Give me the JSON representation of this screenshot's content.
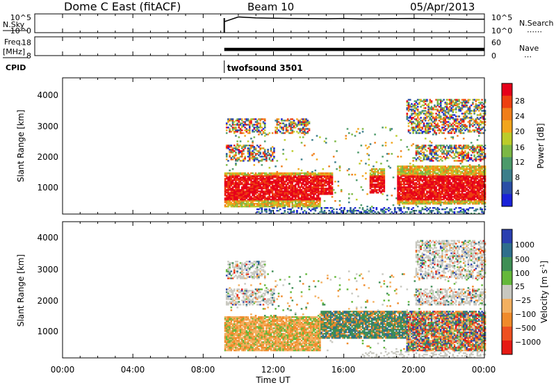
{
  "header": {
    "station": "Dome C East (fitACF)",
    "beam": "Beam 10",
    "date": "05/Apr/2013"
  },
  "strips": {
    "nsky": {
      "left_label": "N.Sky",
      "left_ticks": [
        "10^5",
        "10^0"
      ],
      "right_ticks": [
        "10^5",
        "10^0"
      ],
      "right_label": "N.Search"
    },
    "freq": {
      "left_label": "Freq.",
      "left_unit": "[MHz]",
      "left_ticks": [
        "18",
        "8"
      ],
      "right_ticks": [
        "60",
        "0"
      ],
      "right_label": "Nave"
    },
    "cpid": {
      "label": "CPID",
      "program": "twofsound 3501"
    }
  },
  "panels": {
    "power": {
      "ylabel": "Slant Range [km]",
      "yticks": [
        "4000",
        "3000",
        "2000",
        "1000"
      ],
      "colorbar_title": "Power [dB]",
      "colorbar_labels": [
        "28",
        "24",
        "20",
        "16",
        "12",
        "8",
        "4"
      ]
    },
    "velocity": {
      "ylabel": "Slant Range [km]",
      "yticks": [
        "4000",
        "3000",
        "2000",
        "1000"
      ],
      "colorbar_title": "Velocity [m s",
      "colorbar_unit_sup": "-1",
      "colorbar_unit_close": "]",
      "colorbar_labels": [
        "1000",
        "500",
        "100",
        "25",
        "−25",
        "−100",
        "−500",
        "−1000"
      ]
    }
  },
  "x_axis": {
    "ticks": [
      "00:00",
      "04:00",
      "08:00",
      "12:00",
      "16:00",
      "20:00",
      "00:00"
    ],
    "label": "Time UT"
  },
  "colors": {
    "power_scale": [
      "#e6001a",
      "#ee4010",
      "#f07e1a",
      "#f2a51c",
      "#bccc2a",
      "#7cb845",
      "#4c9a6a",
      "#3c7e8a",
      "#2a4ea6",
      "#1a22d8"
    ],
    "velocity_scale": [
      "#2a3fb0",
      "#2e6e8c",
      "#3e8f55",
      "#64b83a",
      "#c8c8c0",
      "#f3b060",
      "#f08a2a",
      "#ee5020",
      "#e61a14"
    ]
  },
  "chart_data": [
    {
      "type": "line",
      "name": "N.Sky / N.Search",
      "x_range_hours": [
        0,
        24
      ],
      "x": [
        9.2,
        10,
        11,
        12,
        13,
        14,
        15,
        16,
        17,
        18,
        19,
        20,
        21,
        22,
        23,
        24
      ],
      "series": [
        {
          "values": [
            1000,
            30000,
            15000,
            12000,
            10000,
            9000,
            8000,
            10000,
            7000,
            8000,
            9000,
            10000,
            8000,
            7000,
            6000,
            6000
          ]
        }
      ],
      "scale": "log",
      "ylim": [
        1,
        100000
      ]
    },
    {
      "type": "line",
      "name": "Freq / Nave",
      "x_range_hours": [
        0,
        24
      ],
      "series": [
        {
          "values_band_mhz": [
            10,
            12
          ]
        }
      ],
      "data_start_hour": 9.2,
      "ylim": [
        8,
        18
      ]
    },
    {
      "type": "heatmap",
      "title": "Power [dB]",
      "x_range_hours": [
        0,
        24
      ],
      "y_range_km": [
        180,
        4600
      ],
      "clim": [
        0,
        30
      ],
      "data_start_hour": 9.2,
      "features": [
        {
          "t": [
            9.2,
            14.5
          ],
          "range_km": [
            400,
            1500
          ],
          "level": "high"
        },
        {
          "t": [
            17.5,
            18.2
          ],
          "range_km": [
            900,
            1600
          ],
          "level": "high"
        },
        {
          "t": [
            19.0,
            24.0
          ],
          "range_km": [
            500,
            1700
          ],
          "level": "high"
        },
        {
          "t": [
            9.2,
            24.0
          ],
          "range_km": [
            2700,
            3500
          ],
          "level": "medium"
        },
        {
          "t": [
            9.2,
            24.0
          ],
          "range_km": [
            1800,
            2500
          ],
          "level": "medium"
        }
      ]
    },
    {
      "type": "heatmap",
      "title": "Velocity [m s-1]",
      "x_range_hours": [
        0,
        24
      ],
      "y_range_km": [
        180,
        4600
      ],
      "clim": [
        -1000,
        1000
      ],
      "data_start_hour": 9.2,
      "features": [
        {
          "t": [
            9.2,
            14.5
          ],
          "range_km": [
            400,
            1500
          ],
          "level": "negative"
        },
        {
          "t": [
            14.5,
            19.5
          ],
          "range_km": [
            800,
            1700
          ],
          "level": "positive"
        },
        {
          "t": [
            19.5,
            24.0
          ],
          "range_km": [
            400,
            1700
          ],
          "level": "mixed"
        },
        {
          "t": [
            20.0,
            24.0
          ],
          "range_km": [
            2600,
            4000
          ],
          "level": "near-zero"
        }
      ]
    }
  ]
}
